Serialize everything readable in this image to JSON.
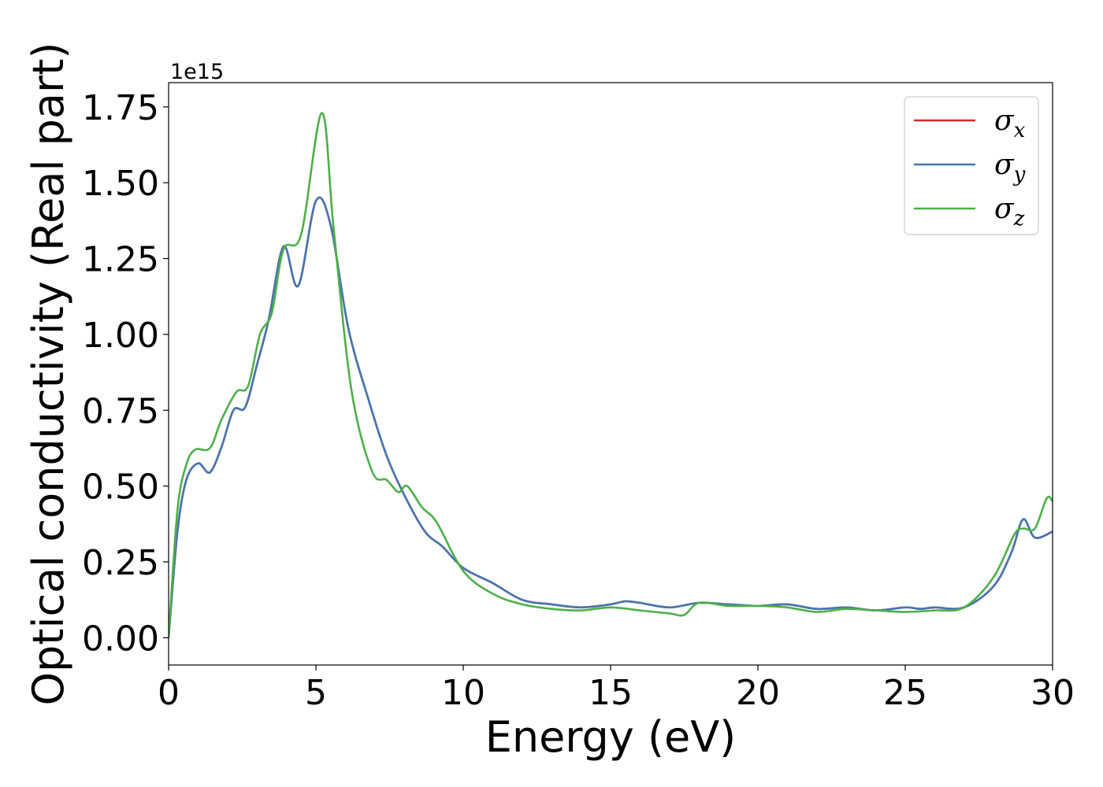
{
  "chart_data": {
    "type": "line",
    "xlabel": "Energy (eV)",
    "ylabel": "Optical conductivity (Real part)",
    "y_offset_label": "1e15",
    "y_scale": 1000000000000000.0,
    "xlim": [
      0,
      30
    ],
    "ylim": [
      -0.09,
      1.83
    ],
    "x_ticks": [
      0,
      5,
      10,
      15,
      20,
      25,
      30
    ],
    "x_tick_labels": [
      "0",
      "5",
      "10",
      "15",
      "20",
      "25",
      "30"
    ],
    "y_ticks": [
      0.0,
      0.25,
      0.5,
      0.75,
      1.0,
      1.25,
      1.5,
      1.75
    ],
    "y_tick_labels": [
      "0.00",
      "0.25",
      "0.50",
      "0.75",
      "1.00",
      "1.25",
      "1.50",
      "1.75"
    ],
    "grid": false,
    "legend_position": "top-right",
    "series": [
      {
        "name": "σx",
        "legend_base": "σ",
        "legend_sub": "x",
        "color": "#d62728",
        "x": [
          0,
          0.3,
          0.6,
          1.0,
          1.4,
          1.8,
          2.2,
          2.6,
          3.0,
          3.4,
          3.9,
          4.4,
          5.0,
          5.5,
          6.1,
          6.8,
          7.4,
          8.0,
          8.7,
          9.3,
          10.0,
          11.0,
          12.0,
          13.0,
          14.0,
          15.0,
          15.5,
          16.0,
          17.0,
          18.0,
          19.0,
          20.0,
          21.0,
          22.0,
          23.0,
          24.0,
          25.0,
          25.5,
          26.0,
          27.0,
          28.0,
          28.6,
          29.0,
          29.4,
          30.0
        ],
        "y": [
          0.0,
          0.35,
          0.52,
          0.575,
          0.545,
          0.63,
          0.75,
          0.76,
          0.9,
          1.05,
          1.29,
          1.16,
          1.44,
          1.36,
          1.02,
          0.78,
          0.6,
          0.47,
          0.35,
          0.3,
          0.23,
          0.18,
          0.125,
          0.11,
          0.1,
          0.11,
          0.12,
          0.115,
          0.1,
          0.115,
          0.11,
          0.105,
          0.11,
          0.095,
          0.1,
          0.09,
          0.1,
          0.095,
          0.1,
          0.1,
          0.17,
          0.28,
          0.39,
          0.33,
          0.35
        ]
      },
      {
        "name": "σy",
        "legend_base": "σ",
        "legend_sub": "y",
        "color": "#4477b0",
        "x": [
          0,
          0.3,
          0.6,
          1.0,
          1.4,
          1.8,
          2.2,
          2.6,
          3.0,
          3.4,
          3.9,
          4.4,
          5.0,
          5.5,
          6.1,
          6.8,
          7.4,
          8.0,
          8.7,
          9.3,
          10.0,
          11.0,
          12.0,
          13.0,
          14.0,
          15.0,
          15.5,
          16.0,
          17.0,
          18.0,
          19.0,
          20.0,
          21.0,
          22.0,
          23.0,
          24.0,
          25.0,
          25.5,
          26.0,
          27.0,
          28.0,
          28.6,
          29.0,
          29.4,
          30.0
        ],
        "y": [
          0.0,
          0.35,
          0.52,
          0.575,
          0.545,
          0.63,
          0.75,
          0.76,
          0.9,
          1.05,
          1.29,
          1.16,
          1.44,
          1.36,
          1.02,
          0.78,
          0.6,
          0.47,
          0.35,
          0.3,
          0.23,
          0.18,
          0.125,
          0.11,
          0.1,
          0.11,
          0.12,
          0.115,
          0.1,
          0.115,
          0.11,
          0.105,
          0.11,
          0.095,
          0.1,
          0.09,
          0.1,
          0.095,
          0.1,
          0.1,
          0.17,
          0.28,
          0.39,
          0.33,
          0.35
        ]
      },
      {
        "name": "σz",
        "legend_base": "σ",
        "legend_sub": "z",
        "color": "#4daf4a",
        "x": [
          0,
          0.3,
          0.6,
          0.9,
          1.4,
          1.8,
          2.3,
          2.7,
          3.1,
          3.5,
          3.9,
          4.5,
          5.2,
          5.6,
          6.2,
          6.9,
          7.4,
          7.8,
          8.1,
          8.6,
          9.1,
          10.0,
          11.0,
          12.0,
          13.0,
          14.0,
          15.0,
          16.0,
          17.0,
          17.5,
          18.0,
          19.0,
          20.0,
          21.0,
          22.0,
          23.0,
          24.0,
          25.0,
          26.0,
          27.0,
          28.0,
          28.7,
          29.0,
          29.4,
          29.8,
          30.0
        ],
        "y": [
          0.0,
          0.42,
          0.57,
          0.62,
          0.625,
          0.72,
          0.81,
          0.83,
          1.0,
          1.07,
          1.28,
          1.33,
          1.73,
          1.35,
          0.82,
          0.55,
          0.52,
          0.48,
          0.5,
          0.43,
          0.38,
          0.22,
          0.145,
          0.11,
          0.095,
          0.09,
          0.1,
          0.09,
          0.08,
          0.075,
          0.115,
          0.105,
          0.105,
          0.1,
          0.085,
          0.095,
          0.09,
          0.085,
          0.09,
          0.1,
          0.2,
          0.34,
          0.36,
          0.36,
          0.46,
          0.45
        ]
      }
    ]
  }
}
